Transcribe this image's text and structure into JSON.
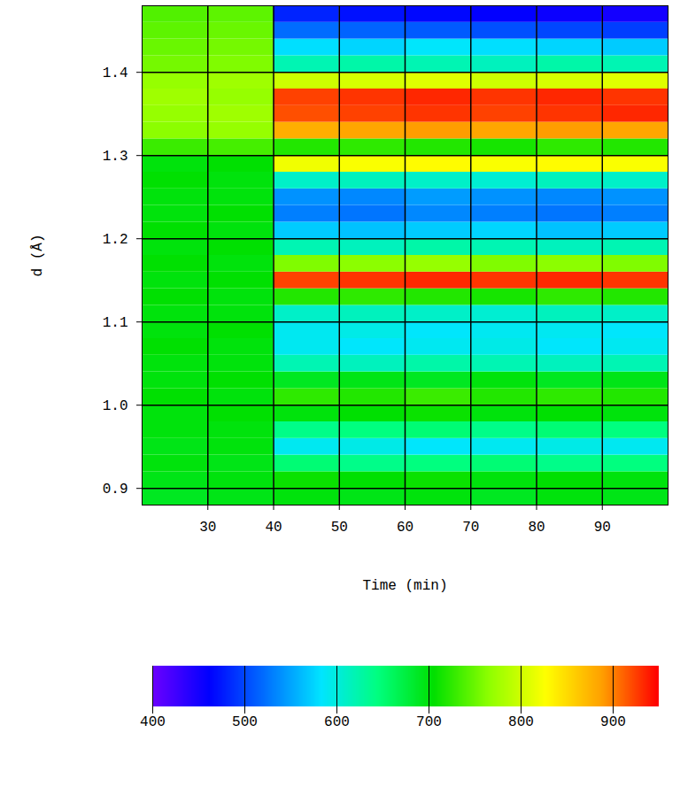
{
  "chart_data": {
    "type": "heatmap",
    "x_label": "Time (min)",
    "y_label": "d (Å)",
    "xlim": [
      20,
      100
    ],
    "ylim": [
      0.88,
      1.48
    ],
    "xticks": [
      30,
      40,
      50,
      60,
      70,
      80,
      90
    ],
    "yticks": [
      0.9,
      {
        "value": 1,
        "label": "1.0"
      },
      1.1,
      1.2,
      1.3,
      1.4
    ],
    "grid": true,
    "x_bins": [
      20,
      30,
      40,
      50,
      60,
      70,
      80,
      90,
      100
    ],
    "y_bins": [
      0.88,
      0.9,
      0.92,
      0.94,
      0.96,
      0.98,
      1.0,
      1.02,
      1.04,
      1.06,
      1.08,
      1.1,
      1.12,
      1.14,
      1.16,
      1.18,
      1.2,
      1.22,
      1.24,
      1.26,
      1.28,
      1.3,
      1.32,
      1.34,
      1.36,
      1.38,
      1.4,
      1.42,
      1.44,
      1.46,
      1.48
    ],
    "cells": [
      [
        690,
        695,
        700,
        695,
        700,
        690,
        700,
        695
      ],
      [
        695,
        700,
        710,
        705,
        710,
        700,
        705,
        700
      ],
      [
        700,
        695,
        650,
        640,
        645,
        650,
        640,
        645
      ],
      [
        695,
        700,
        590,
        595,
        585,
        590,
        595,
        590
      ],
      [
        700,
        700,
        640,
        645,
        650,
        640,
        650,
        645
      ],
      [
        700,
        705,
        700,
        705,
        710,
        700,
        705,
        700
      ],
      [
        705,
        700,
        725,
        720,
        730,
        720,
        725,
        720
      ],
      [
        700,
        705,
        690,
        695,
        690,
        700,
        690,
        695
      ],
      [
        700,
        700,
        620,
        615,
        625,
        620,
        615,
        620
      ],
      [
        705,
        700,
        590,
        585,
        590,
        595,
        585,
        590
      ],
      [
        700,
        705,
        590,
        595,
        585,
        590,
        590,
        585
      ],
      [
        700,
        700,
        610,
        615,
        610,
        605,
        615,
        610
      ],
      [
        705,
        700,
        720,
        725,
        720,
        715,
        725,
        720
      ],
      [
        700,
        705,
        925,
        930,
        935,
        930,
        935,
        930
      ],
      [
        705,
        700,
        760,
        765,
        770,
        760,
        765,
        760
      ],
      [
        700,
        705,
        620,
        615,
        625,
        620,
        615,
        620
      ],
      [
        705,
        700,
        570,
        565,
        570,
        575,
        565,
        570
      ],
      [
        700,
        705,
        530,
        525,
        535,
        530,
        525,
        530
      ],
      [
        700,
        700,
        540,
        535,
        545,
        540,
        535,
        540
      ],
      [
        705,
        700,
        610,
        615,
        610,
        605,
        615,
        610
      ],
      [
        700,
        705,
        820,
        825,
        830,
        825,
        830,
        825
      ],
      [
        730,
        735,
        720,
        725,
        720,
        715,
        725,
        720
      ],
      [
        765,
        770,
        880,
        885,
        890,
        885,
        890,
        885
      ],
      [
        770,
        775,
        920,
        925,
        930,
        925,
        930,
        935
      ],
      [
        775,
        770,
        925,
        930,
        935,
        930,
        935,
        930
      ],
      [
        770,
        775,
        800,
        805,
        810,
        800,
        805,
        810
      ],
      [
        755,
        760,
        620,
        625,
        620,
        615,
        625,
        620
      ],
      [
        750,
        755,
        580,
        575,
        585,
        580,
        575,
        570
      ],
      [
        745,
        750,
        520,
        515,
        510,
        505,
        500,
        495
      ],
      [
        740,
        745,
        480,
        470,
        465,
        460,
        455,
        450
      ]
    ],
    "colorbar": {
      "range": [
        400,
        950
      ],
      "ticks": [
        400,
        500,
        600,
        700,
        800,
        900
      ]
    }
  }
}
